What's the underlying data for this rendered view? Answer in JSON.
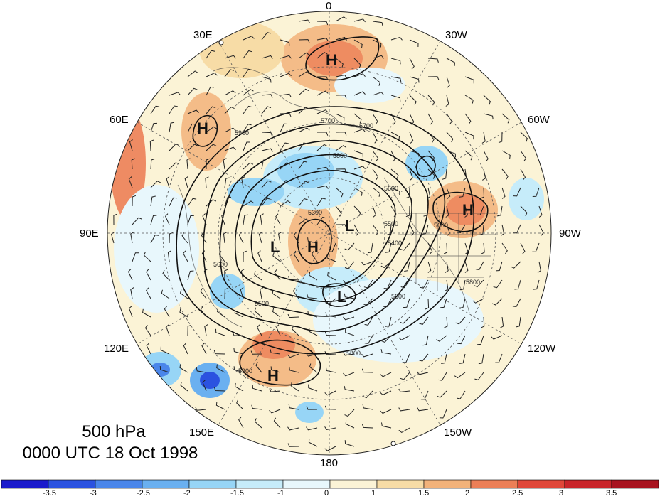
{
  "title": {
    "level": "500 hPa",
    "datetime": "0000 UTC 18 Oct 1998"
  },
  "longitude_labels": {
    "deg0": "0",
    "deg30w": "30W",
    "deg60w": "60W",
    "deg90w": "90W",
    "deg120w": "120W",
    "deg150w": "150W",
    "deg180": "180",
    "deg150e": "150E",
    "deg120e": "120E",
    "deg90e": "90E",
    "deg60e": "60E",
    "deg30e": "30E"
  },
  "pressure_centers": [
    {
      "label": "H",
      "where": "Scandinavia"
    },
    {
      "label": "H",
      "where": "West Siberia"
    },
    {
      "label": "H",
      "where": "Canadian Arctic"
    },
    {
      "label": "H",
      "where": "Siberian Arctic"
    },
    {
      "label": "H",
      "where": "North Pacific"
    },
    {
      "label": "L",
      "where": "Siberia"
    },
    {
      "label": "L",
      "where": "Arctic Ocean"
    },
    {
      "label": "L",
      "where": "Alaska"
    }
  ],
  "contour_labels": [
    "5700",
    "5800",
    "5700",
    "5600",
    "5500",
    "5400",
    "5300",
    "5900",
    "5800",
    "5600",
    "5500",
    "5600",
    "5800",
    "5900",
    "5600"
  ],
  "colorbar": {
    "ticks": [
      "-3.5",
      "-3",
      "-2.5",
      "-2",
      "-1.5",
      "-1",
      "0",
      "1",
      "1.5",
      "2",
      "2.5",
      "3",
      "3.5"
    ],
    "colors": [
      "#1a1acc",
      "#2b52e0",
      "#4a86ea",
      "#6ab0f0",
      "#97d5f6",
      "#c6ecfa",
      "#e8f7fc",
      "#fbf3d6",
      "#f7dca6",
      "#f2b27a",
      "#ec7f57",
      "#e04739",
      "#c9252a",
      "#a8131f"
    ]
  },
  "colors": {
    "ocean_neutral": "#fbf3d6",
    "contour": "#111111",
    "barb": "#222222",
    "grid": "#555555"
  }
}
